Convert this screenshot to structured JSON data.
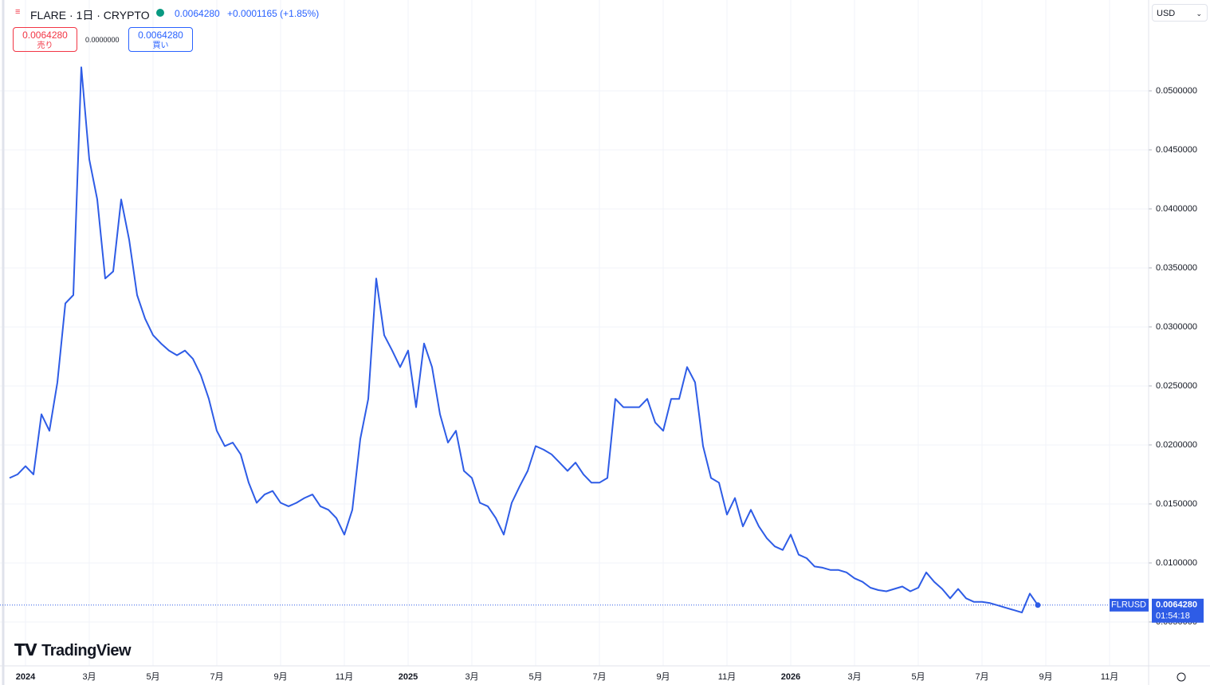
{
  "header": {
    "symbol": "FLARE · 1日 · CRYPTO",
    "price": "0.0064280",
    "change": "+0.0001165 (+1.85%)",
    "sell_price": "0.0064280",
    "sell_label": "売り",
    "spread": "0.0000000",
    "buy_price": "0.0064280",
    "buy_label": "買い",
    "currency": "USD",
    "logo": "TradingView",
    "countdown": "01:54:18",
    "last_price": "0.0064280"
  },
  "chart_data": {
    "type": "line",
    "categories": [
      null,
      null,
      "2024",
      null,
      null,
      null,
      null,
      null,
      null,
      null,
      "3月",
      null,
      null,
      null,
      null,
      null,
      null,
      null,
      "5月",
      null,
      null,
      null,
      null,
      null,
      null,
      null,
      "7月",
      null,
      null,
      null,
      null,
      null,
      null,
      null,
      "9月",
      null,
      null,
      null,
      null,
      null,
      null,
      null,
      "11月",
      null,
      null,
      null,
      null,
      null,
      null,
      null,
      "2025",
      null,
      null,
      null,
      null,
      null,
      null,
      null,
      "3月",
      null,
      null,
      null,
      null,
      null,
      null,
      null,
      "5月",
      null,
      null,
      null,
      null,
      null,
      null,
      null,
      "7月",
      null,
      null,
      null,
      null,
      null,
      null,
      null,
      "9月",
      null,
      null,
      null,
      null,
      null,
      null,
      null,
      "11月",
      null,
      null,
      null,
      null,
      null,
      null,
      null,
      "2026",
      null,
      null,
      null,
      null,
      null,
      null,
      null,
      "3月",
      null,
      null,
      null,
      null,
      null,
      null,
      null,
      "5月",
      null,
      null,
      null,
      null,
      null,
      null,
      null,
      "7月",
      null,
      null,
      null,
      null,
      null,
      null,
      null,
      "9月",
      null,
      null,
      null,
      null,
      null,
      null,
      null,
      "11月",
      null,
      null,
      null,
      null
    ],
    "series": [
      {
        "name": "FLRUSD",
        "color": "#2e5ce6",
        "values": [
          0.0172,
          0.0175,
          0.0182,
          0.0175,
          0.0226,
          0.0212,
          0.0253,
          0.032,
          0.0327,
          0.052,
          0.0442,
          0.0408,
          0.0341,
          0.0347,
          0.0408,
          0.0374,
          0.0327,
          0.0307,
          0.0293,
          0.0286,
          0.028,
          0.0276,
          0.028,
          0.0273,
          0.0259,
          0.0239,
          0.0212,
          0.0199,
          0.0202,
          0.0192,
          0.0168,
          0.0151,
          0.0158,
          0.0161,
          0.0151,
          0.0148,
          0.0151,
          0.0155,
          0.0158,
          0.0148,
          0.0145,
          0.0138,
          0.0124,
          0.0145,
          0.0205,
          0.0239,
          0.0341,
          0.0293,
          0.028,
          0.0266,
          0.028,
          0.0232,
          0.0286,
          0.0266,
          0.0226,
          0.0202,
          0.0212,
          0.0178,
          0.0172,
          0.0151,
          0.0148,
          0.0138,
          0.0124,
          0.0151,
          0.0165,
          0.0178,
          0.0199,
          0.0196,
          0.0192,
          0.0185,
          0.0178,
          0.0185,
          0.0175,
          0.0168,
          0.0168,
          0.0172,
          0.0239,
          0.0232,
          0.0232,
          0.0232,
          0.0239,
          0.0219,
          0.0212,
          0.0239,
          0.0239,
          0.0266,
          0.0253,
          0.0199,
          0.0172,
          0.0168,
          0.0141,
          0.0155,
          0.0131,
          0.0145,
          0.0131,
          0.0121,
          0.0114,
          0.0111,
          0.0124,
          0.0107,
          0.0104,
          0.0097,
          0.0096,
          0.0094,
          0.0094,
          0.0092,
          0.0087,
          0.0084,
          0.0079,
          0.0077,
          0.0076,
          0.0078,
          0.008,
          0.0076,
          0.0079,
          0.0092,
          0.0084,
          0.0078,
          0.007,
          0.0078,
          0.007,
          0.0067,
          0.0067,
          0.0066,
          0.0064,
          0.0062,
          0.006,
          0.0058,
          0.0074,
          0.006428,
          null,
          null,
          null,
          null,
          null,
          null,
          null,
          null,
          null,
          null,
          null,
          null,
          null
        ]
      }
    ],
    "ylim": [
      0.00128,
      0.0577
    ],
    "yticks": [
      {
        "value": 0.005,
        "label": "0.0050000"
      },
      {
        "value": 0.01,
        "label": "0.0100000"
      },
      {
        "value": 0.015,
        "label": "0.0150000"
      },
      {
        "value": 0.02,
        "label": "0.0200000"
      },
      {
        "value": 0.025,
        "label": "0.0250000"
      },
      {
        "value": 0.03,
        "label": "0.0300000"
      },
      {
        "value": 0.035,
        "label": "0.0350000"
      },
      {
        "value": 0.04,
        "label": "0.0400000"
      },
      {
        "value": 0.045,
        "label": "0.0450000"
      },
      {
        "value": 0.05,
        "label": "0.0500000"
      }
    ],
    "grid": true
  }
}
